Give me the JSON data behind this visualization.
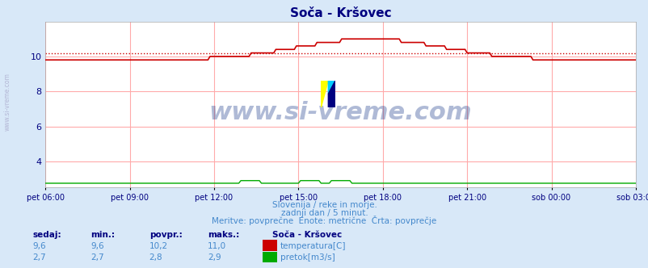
{
  "title": "Soča - Kršovec",
  "bg_color": "#d8e8f8",
  "plot_bg_color": "#ffffff",
  "grid_color": "#ffaaaa",
  "title_color": "#000080",
  "axis_label_color": "#000080",
  "text_color": "#4488cc",
  "subtitle_lines": [
    "Slovenija / reke in morje.",
    "zadnji dan / 5 minut.",
    "Meritve: povprečne  Enote: metrične  Črta: povprečje"
  ],
  "xlabel_ticks": [
    "pet 06:00",
    "pet 09:00",
    "pet 12:00",
    "pet 15:00",
    "pet 18:00",
    "pet 21:00",
    "sob 00:00",
    "sob 03:00"
  ],
  "ylim": [
    2.5,
    12.0
  ],
  "yticks": [
    4,
    6,
    8,
    10
  ],
  "n_points": 288,
  "temp_base": 9.8,
  "temp_max": 11.0,
  "temp_min": 9.6,
  "temp_avg": 10.2,
  "flow_base": 2.75,
  "flow_max": 2.9,
  "flow_avg": 2.8,
  "watermark": "www.si-vreme.com",
  "legend_title": "Soča - Kršovec",
  "legend_items": [
    {
      "label": "temperatura[C]",
      "color": "#cc0000"
    },
    {
      "label": "pretok[m3/s]",
      "color": "#00aa00"
    }
  ],
  "stats_headers": [
    "sedaj:",
    "min.:",
    "povpr.:",
    "maks.:"
  ],
  "stats_rows": [
    [
      "9,6",
      "9,6",
      "10,2",
      "11,0"
    ],
    [
      "2,7",
      "2,7",
      "2,8",
      "2,9"
    ]
  ],
  "avg_line_color": "#cc0000",
  "avg_line_value": 10.2,
  "watermark_color": "#1a3a8a",
  "logo_colors": [
    "#ffff00",
    "#00ccff",
    "#000080"
  ],
  "watermark_fontsize": 22,
  "side_text": "www.si-vreme.com"
}
